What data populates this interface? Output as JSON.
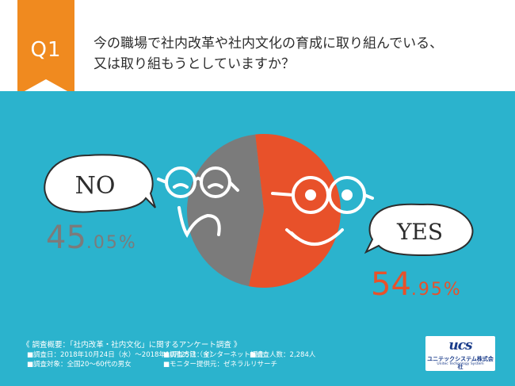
{
  "header": {
    "badge": "Q1",
    "question_line1": "今の職場で社内改革や社内文化の育成に取り組んでいる、",
    "question_line2": "又は取り組もうとしていますか？",
    "badge_color": "#f08a1f"
  },
  "colors": {
    "background": "#2bb3cd",
    "yes": "#e8512a",
    "no": "#7b7b7b",
    "line": "#ffffff"
  },
  "chart_data": {
    "type": "pie",
    "categories": [
      "YES",
      "NO"
    ],
    "values": [
      54.95,
      45.05
    ],
    "value_labels": [
      "54.95%",
      "45.05%"
    ],
    "title": "今の職場で社内改革や社内文化の育成に取り組んでいる、又は取り組もうとしていますか？"
  },
  "labels": {
    "no_bubble": "NO",
    "yes_bubble": "YES",
    "no_int": "45",
    "no_frac": ".05%",
    "yes_int": "54",
    "yes_frac": ".95%"
  },
  "notes": {
    "title": "《 調査概要：「社内改革・社内文化」に関するアンケート調査 》",
    "period": "■調査日：2018年10月24日（水）〜2018年10月25日（金）",
    "method": "■調査方法：インターネット調査",
    "count": "■調査人数：2,284人",
    "target": "■調査対象：全国20〜60代の男女",
    "provider": "■モニター提供元：ゼネラルリサーチ"
  },
  "logo": {
    "mark": "ucs",
    "name": "ユニテックシステム株式会社",
    "sub": "Unitec Technology System"
  }
}
